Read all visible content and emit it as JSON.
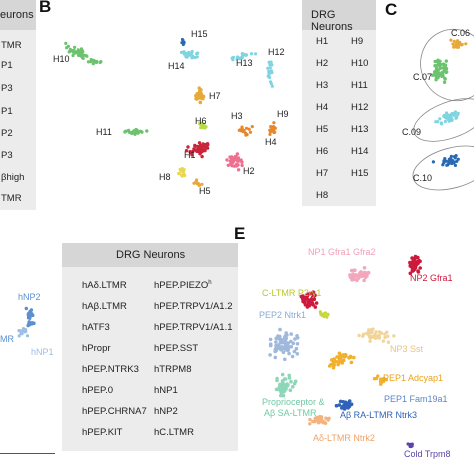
{
  "panel_letters": {
    "b": "B",
    "c": "C",
    "e": "E"
  },
  "panel_a_cut": {
    "header": "eurons",
    "items": [
      "TMR",
      "P1",
      "P3",
      "P1",
      "P2",
      "P3",
      "βhigh",
      "TMR"
    ]
  },
  "panel_b": {
    "clusters": [
      "H1",
      "H2",
      "H3",
      "H4",
      "H5",
      "H6",
      "H7",
      "H8",
      "H9",
      "H10",
      "H11",
      "H12",
      "H13",
      "H14",
      "H15"
    ]
  },
  "panel_b_table": {
    "header": "DRG Neurons",
    "col1": [
      "H1",
      "H2",
      "H3",
      "H4",
      "H5",
      "H6",
      "H7",
      "H8"
    ],
    "col2": [
      "H9",
      "H10",
      "H11",
      "H12",
      "H13",
      "H14",
      "H15"
    ]
  },
  "panel_c": {
    "labels": [
      "C.06",
      "C.07",
      "C.09",
      "C.10"
    ]
  },
  "panel_d_cut": {
    "labels": [
      "hNP2",
      "MR",
      "hNP1"
    ]
  },
  "panel_d_table": {
    "header": "DRG Neurons",
    "col1": [
      "hAδ.LTMR",
      "hAβ.LTMR",
      "hATF3",
      "hPropr",
      "hPEP.NTRK3",
      "hPEP.0",
      "hPEP.CHRNA7",
      "hPEP.KIT"
    ],
    "col2": [
      "hPEP.PIEZO",
      "hPEP.TRPV1/A1.2",
      "hPEP.TRPV1/A1.1",
      "hPEP.SST",
      "hTRPM8",
      "hNP1",
      "hNP2",
      "hC.LTMR"
    ],
    "superscript_h": "h"
  },
  "panel_e": {
    "np1": "NP1 Gfra1 Gfra2",
    "np2": "NP2 Gfra1",
    "cltmr": "C-LTMR P2ry1",
    "pep2": "PEP2 Ntrk1",
    "np3": "NP3 Sst",
    "pep1a": "PEP1 Adcyap1",
    "pep1b": "PEP1 Fam19a1",
    "prop1": "Proprioceptor &",
    "prop2": "Aβ SA-LTMR",
    "abra": "Aβ RA-LTMR Ntrk3",
    "adltmr": "Aδ-LTMR Ntrk2",
    "cold": "Cold Trpm8"
  },
  "colors": {
    "np1": "#f2a7bd",
    "np2": "#cc1a3d",
    "cltmr": "#c8d83a",
    "pep2": "#9fb8dc",
    "np3": "#f1d49a",
    "pep1": "#f1b12a",
    "prop": "#8ed6b8",
    "abra": "#2f62b8",
    "adltmr": "#f3b37e",
    "cold": "#5a44a6",
    "green": "#6cc36e",
    "cyan": "#7fd4e0",
    "blue": "#2a6ab3",
    "gold": "#e7a93a",
    "orange": "#e8872a",
    "pink": "#ee6f8f",
    "yellow": "#e9d84e",
    "darkred": "#c9253b",
    "lime": "#b9d94b"
  }
}
